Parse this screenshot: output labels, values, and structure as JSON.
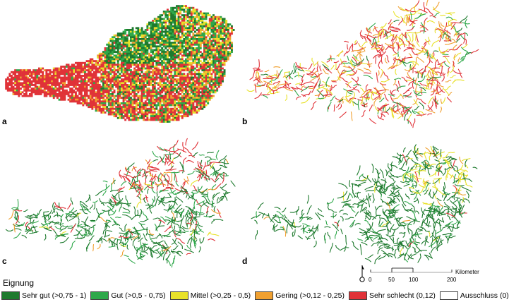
{
  "panels": [
    {
      "id": "a",
      "label": "a",
      "style": "raster"
    },
    {
      "id": "b",
      "label": "b",
      "style": "network"
    },
    {
      "id": "c",
      "label": "c",
      "style": "network"
    },
    {
      "id": "d",
      "label": "d",
      "style": "network"
    }
  ],
  "legend": {
    "title": "Eignung",
    "classes": [
      {
        "label": "Sehr gut (>0,75 - 1)",
        "color": "#1e7a2e"
      },
      {
        "label": "Gut (>0,5 - 0,75)",
        "color": "#2ea84a"
      },
      {
        "label": "Mittel (>0,25 - 0,5)",
        "color": "#e8e22a"
      },
      {
        "label": "Gering (>0,12 - 0,25)",
        "color": "#f0a030"
      },
      {
        "label": "Sehr schlecht (0,12)",
        "color": "#e03238"
      },
      {
        "label": "Ausschluss (0)",
        "color": "#ffffff"
      }
    ]
  },
  "scalebar": {
    "unit": "Kilometer",
    "ticks": [
      "0",
      "50",
      "100",
      "200"
    ]
  }
}
